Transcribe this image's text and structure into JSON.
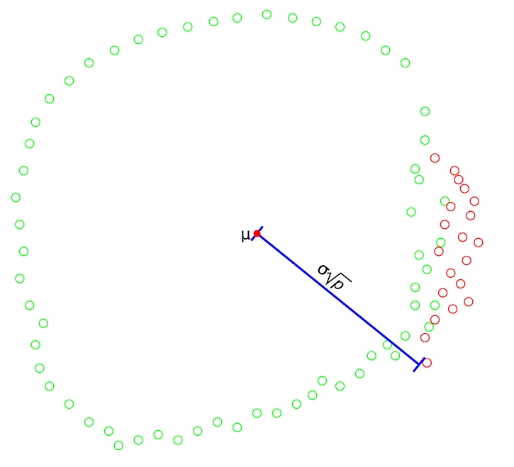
{
  "chart_data": {
    "type": "scatter",
    "title": "",
    "xlabel": "",
    "ylabel": "",
    "xlim": [
      -1.3,
      1.3
    ],
    "ylim": [
      -1.3,
      1.3
    ],
    "grid": false,
    "axes_visible": false,
    "colors": {
      "green": "#00ff00",
      "red": "#ff0000",
      "line": "#0000ff",
      "center": "#ff0000"
    },
    "center": {
      "label": "μ",
      "x": 0.0,
      "y": 0.0
    },
    "radius": {
      "label_symbol": "σ",
      "label_sqrt": "p",
      "from": [
        0.0,
        0.0
      ],
      "to": [
        0.82,
        -0.73
      ],
      "angle_deg": -41.7,
      "length": 1.1
    },
    "series": [
      {
        "name": "green",
        "color": "#00ff00",
        "points": [
          [
            0.85,
            0.68
          ],
          [
            0.85,
            0.52
          ],
          [
            0.8,
            0.36
          ],
          [
            0.82,
            0.3
          ],
          [
            0.78,
            0.12
          ],
          [
            0.95,
            0.18
          ],
          [
            0.93,
            -0.05
          ],
          [
            0.82,
            -0.12
          ],
          [
            0.86,
            -0.2
          ],
          [
            0.8,
            -0.3
          ],
          [
            0.8,
            -0.4
          ],
          [
            0.9,
            -0.4
          ],
          [
            0.87,
            -0.52
          ],
          [
            0.75,
            -0.57
          ],
          [
            0.66,
            -0.62
          ],
          [
            0.7,
            -0.68
          ],
          [
            0.58,
            -0.68
          ],
          [
            0.52,
            -0.78
          ],
          [
            0.42,
            -0.85
          ],
          [
            0.33,
            -0.82
          ],
          [
            0.28,
            -0.9
          ],
          [
            0.2,
            -0.95
          ],
          [
            0.1,
            -1.0
          ],
          [
            0.0,
            -1.0
          ],
          [
            -0.1,
            -1.08
          ],
          [
            -0.2,
            -1.05
          ],
          [
            -0.3,
            -1.1
          ],
          [
            -0.4,
            -1.15
          ],
          [
            -0.5,
            -1.12
          ],
          [
            -0.6,
            -1.15
          ],
          [
            -0.7,
            -1.18
          ],
          [
            -0.75,
            -1.1
          ],
          [
            -0.85,
            -1.05
          ],
          [
            -0.95,
            -0.95
          ],
          [
            -1.05,
            -0.85
          ],
          [
            -1.1,
            -0.75
          ],
          [
            -1.12,
            -0.62
          ],
          [
            -1.08,
            -0.5
          ],
          [
            -1.15,
            -0.4
          ],
          [
            -1.2,
            -0.25
          ],
          [
            -1.18,
            -0.1
          ],
          [
            -1.2,
            0.05
          ],
          [
            -1.22,
            0.2
          ],
          [
            -1.18,
            0.35
          ],
          [
            -1.15,
            0.5
          ],
          [
            -1.12,
            0.62
          ],
          [
            -1.05,
            0.75
          ],
          [
            -0.95,
            0.85
          ],
          [
            -0.85,
            0.95
          ],
          [
            -0.72,
            1.02
          ],
          [
            -0.6,
            1.08
          ],
          [
            -0.48,
            1.12
          ],
          [
            -0.35,
            1.15
          ],
          [
            -0.22,
            1.18
          ],
          [
            -0.1,
            1.2
          ],
          [
            0.05,
            1.22
          ],
          [
            0.18,
            1.2
          ],
          [
            0.3,
            1.18
          ],
          [
            0.42,
            1.15
          ],
          [
            0.55,
            1.1
          ],
          [
            0.65,
            1.02
          ],
          [
            0.75,
            0.95
          ]
        ]
      },
      {
        "name": "red",
        "color": "#ff0000",
        "points": [
          [
            0.9,
            0.42
          ],
          [
            1.0,
            0.35
          ],
          [
            1.02,
            0.3
          ],
          [
            1.05,
            0.25
          ],
          [
            0.98,
            0.15
          ],
          [
            1.08,
            0.1
          ],
          [
            0.95,
            0.05
          ],
          [
            1.04,
            -0.02
          ],
          [
            0.92,
            -0.1
          ],
          [
            1.06,
            -0.15
          ],
          [
            0.98,
            -0.22
          ],
          [
            1.03,
            -0.28
          ],
          [
            0.94,
            -0.33
          ],
          [
            1.07,
            -0.38
          ],
          [
            0.99,
            -0.42
          ],
          [
            0.9,
            -0.48
          ],
          [
            0.85,
            -0.58
          ],
          [
            0.86,
            -0.72
          ],
          [
            1.1,
            0.18
          ],
          [
            1.12,
            -0.05
          ]
        ]
      }
    ]
  }
}
